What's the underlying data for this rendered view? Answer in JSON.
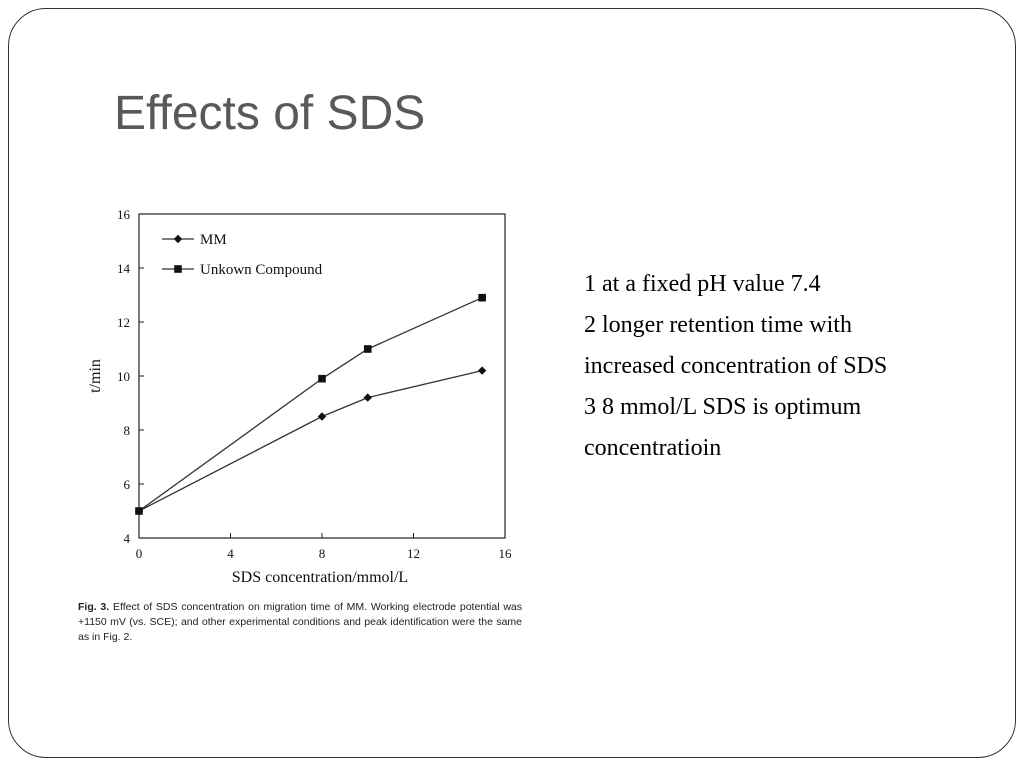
{
  "slide": {
    "title": "Effects of SDS",
    "bullets": [
      "1 at a fixed pH value 7.4",
      "2 longer retention time with increased concentration of SDS",
      "3 8 mmol/L SDS is optimum concentratioin"
    ]
  },
  "caption": {
    "label": "Fig. 3.",
    "text": "Effect of SDS concentration on migration time of MM. Working electrode potential was +1150 mV (vs. SCE); and other experimental conditions and peak identification were the same as in Fig. 2."
  },
  "chart_data": {
    "type": "line",
    "xlabel": "SDS concentration/mmol/L",
    "ylabel": "t/min",
    "xlim": [
      0,
      16
    ],
    "ylim": [
      4,
      16
    ],
    "xticks": [
      "0",
      "4",
      "8",
      "12",
      "16"
    ],
    "yticks": [
      "4",
      "6",
      "8",
      "10",
      "12",
      "14",
      "16"
    ],
    "grid": false,
    "legend": "top-left",
    "series": [
      {
        "name": "MM",
        "marker": "diamond",
        "x": [
          0,
          8,
          10,
          15
        ],
        "y": [
          5.0,
          8.5,
          9.2,
          10.2
        ]
      },
      {
        "name": "Unkown Compound",
        "marker": "square",
        "x": [
          0,
          8,
          10,
          15
        ],
        "y": [
          5.0,
          9.9,
          11.0,
          12.9
        ]
      }
    ]
  }
}
